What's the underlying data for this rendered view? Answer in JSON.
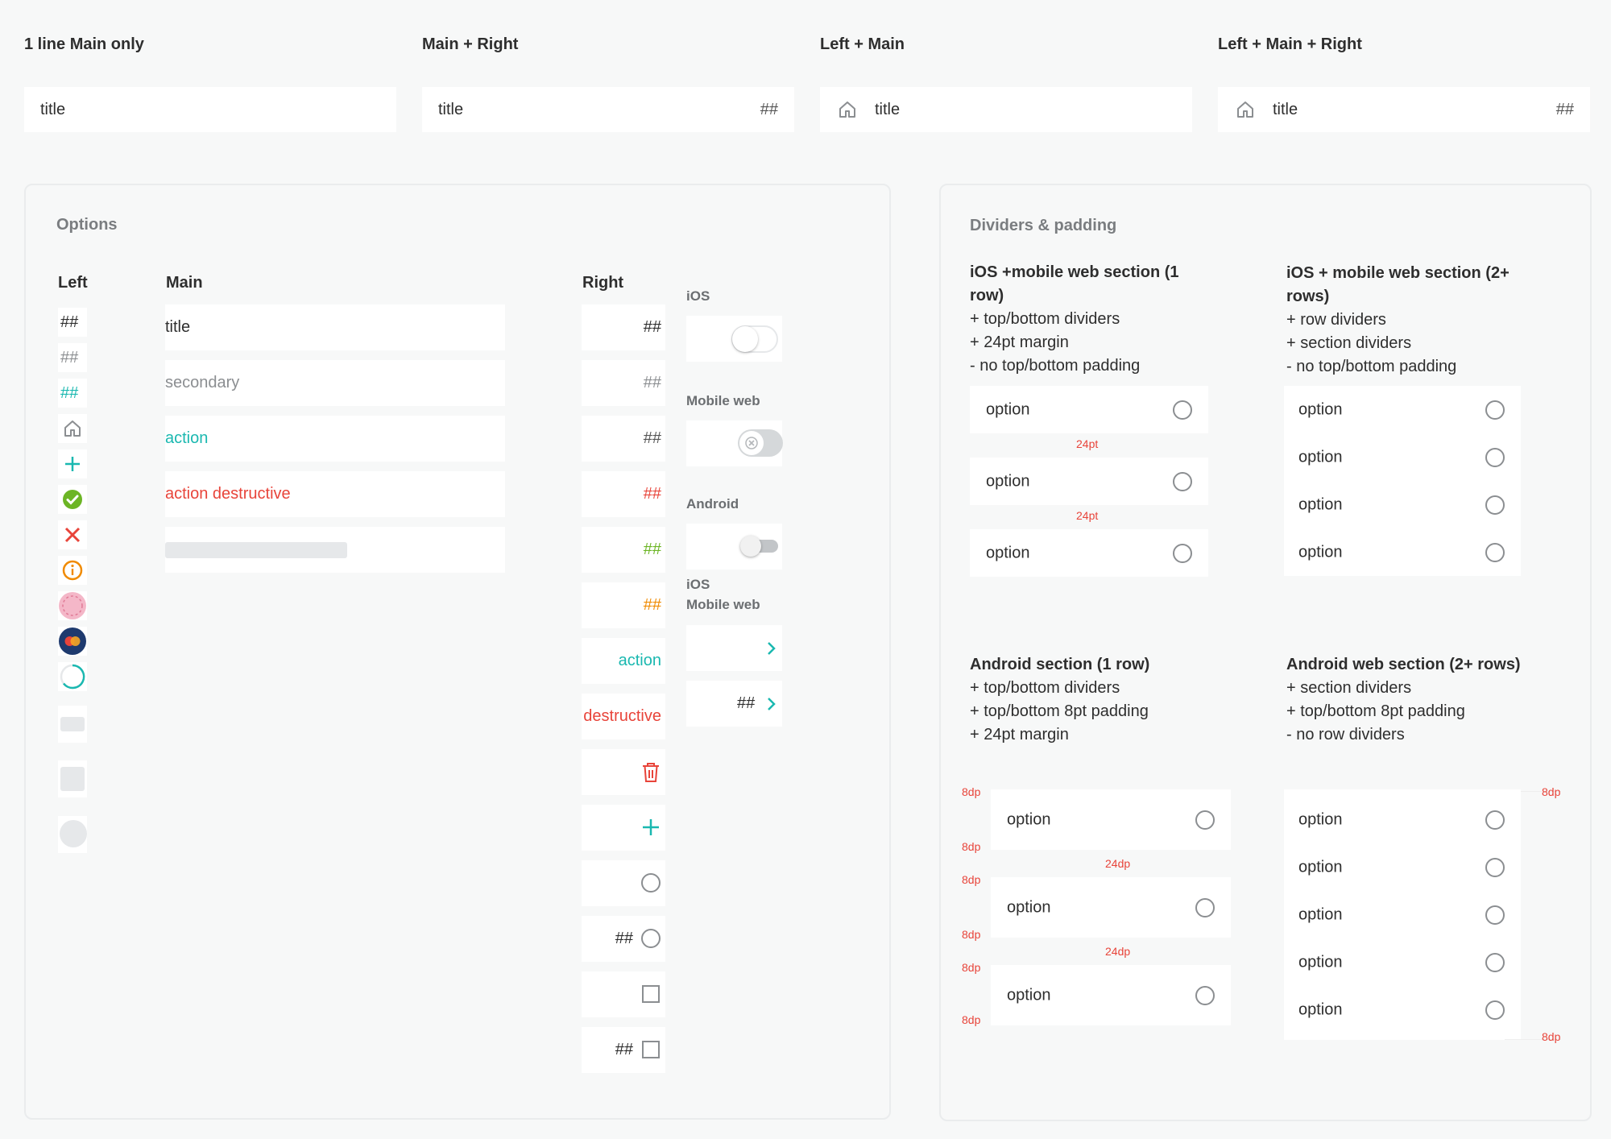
{
  "top": {
    "variants": [
      {
        "heading": "1 line Main only",
        "title": "title"
      },
      {
        "heading": "Main  + Right",
        "title": "title",
        "right": "##"
      },
      {
        "heading": "Left + Main",
        "title": "title"
      },
      {
        "heading": "Left + Main  + Right",
        "title": "title",
        "right": "##"
      }
    ]
  },
  "options": {
    "title": "Options",
    "left_heading": "Left",
    "main_heading": "Main",
    "right_heading": "Right",
    "left_items": [
      "##",
      "##",
      "##"
    ],
    "main_items": [
      "title",
      "secondary",
      "action",
      "action destructive"
    ],
    "right_items": [
      "##",
      "##",
      "##",
      "##",
      "##",
      "##",
      "action",
      "destructive",
      "##",
      "##"
    ],
    "toggles": {
      "ios": "iOS",
      "mobile_web": "Mobile web",
      "android": "Android",
      "ios_mobile_web_1": "iOS",
      "ios_mobile_web_2": "Mobile web",
      "chevron_value": "##"
    },
    "colors": {
      "teal": "#1ab8b0",
      "red": "#e8443a",
      "green": "#6cb525",
      "orange": "#f08a00"
    }
  },
  "dividers": {
    "title": "Dividers & padding",
    "ios_single": {
      "heading": [
        "iOS +mobile web section (1",
        "row)"
      ],
      "notes": [
        "+ top/bottom dividers",
        "+ 24pt margin",
        "- no top/bottom padding"
      ],
      "options": [
        "option",
        "option",
        "option"
      ],
      "spacing": [
        "24pt",
        "24pt"
      ]
    },
    "ios_multi": {
      "heading": [
        "iOS + mobile web section (2+",
        "rows)"
      ],
      "notes": [
        "+ row dividers",
        "+ section dividers",
        "- no top/bottom padding"
      ],
      "options": [
        "option",
        "option",
        "option",
        "option"
      ]
    },
    "android_single": {
      "heading": "Android section (1 row)",
      "notes": [
        "+ top/bottom dividers",
        "+ top/bottom 8pt padding",
        "+ 24pt margin"
      ],
      "options": [
        "option",
        "option",
        "option"
      ],
      "spacing": [
        "24dp",
        "24dp"
      ],
      "padding": [
        "8dp",
        "8dp",
        "8dp",
        "8dp",
        "8dp",
        "8dp"
      ]
    },
    "android_multi": {
      "heading": "Android web section (2+ rows)",
      "notes": [
        "+ section dividers",
        "+ top/bottom 8pt padding",
        "- no row dividers"
      ],
      "options": [
        "option",
        "option",
        "option",
        "option",
        "option"
      ],
      "padding": [
        "8dp",
        "8dp"
      ]
    }
  }
}
